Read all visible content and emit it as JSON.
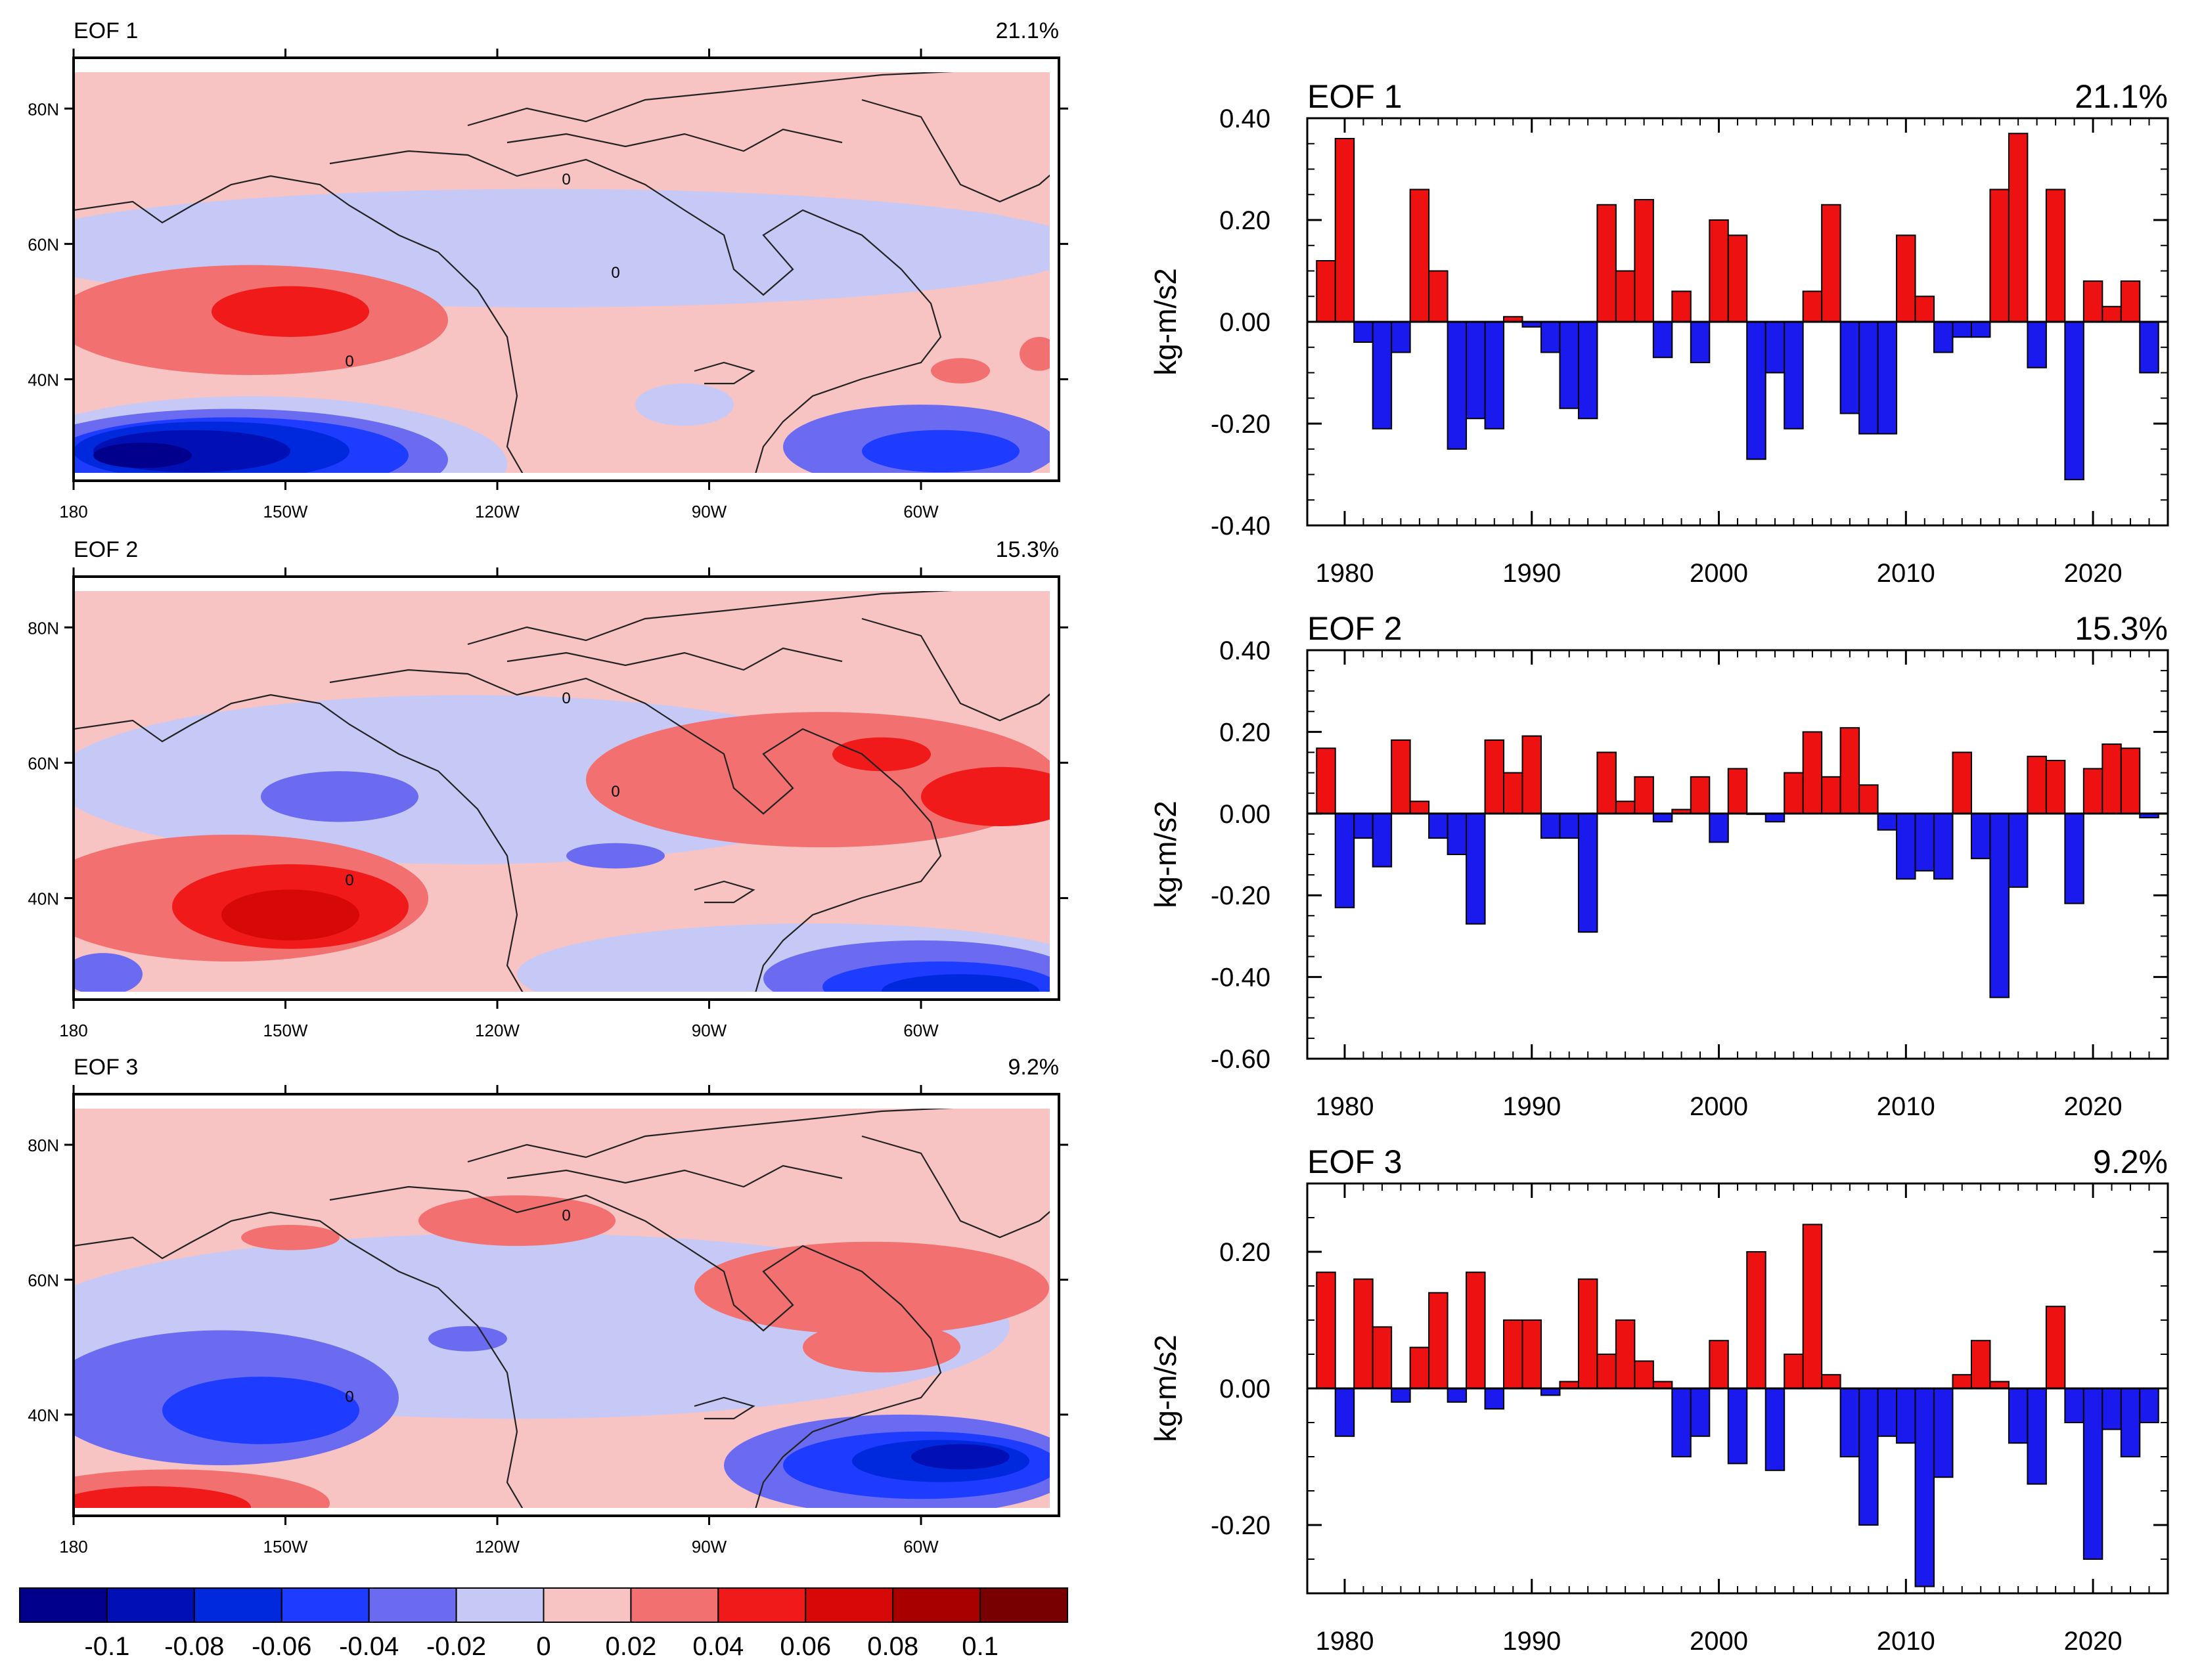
{
  "colors": {
    "positive_bar": "#ee1111",
    "negative_bar": "#1a1aee",
    "coast": "#222222",
    "colorbar": [
      "#00008c",
      "#0010b4",
      "#0028dc",
      "#1e3cff",
      "#6b6bf2",
      "#c6c9f6",
      "#f8c3c3",
      "#f27070",
      "#f01a1a",
      "#d60808",
      "#a80000",
      "#780000"
    ]
  },
  "maps": [
    {
      "label": "EOF 1",
      "variance": "21.1%",
      "lat_ticks": [
        "80N",
        "60N",
        "40N"
      ],
      "lon_ticks": [
        "180",
        "150W",
        "120W",
        "90W",
        "60W"
      ],
      "contour_labels": [
        "0",
        "0",
        "0"
      ]
    },
    {
      "label": "EOF 2",
      "variance": "15.3%",
      "lat_ticks": [
        "80N",
        "60N",
        "40N"
      ],
      "lon_ticks": [
        "180",
        "150W",
        "120W",
        "90W",
        "60W"
      ],
      "contour_labels": [
        "0",
        "0",
        "0"
      ]
    },
    {
      "label": "EOF 3",
      "variance": "9.2%",
      "lat_ticks": [
        "80N",
        "60N",
        "40N"
      ],
      "lon_ticks": [
        "180",
        "150W",
        "120W",
        "90W",
        "60W"
      ],
      "contour_labels": [
        "0",
        "0"
      ]
    }
  ],
  "colorbar": {
    "labels": [
      "-0.1",
      "-0.08",
      "-0.06",
      "-0.04",
      "-0.02",
      "0",
      "0.02",
      "0.04",
      "0.06",
      "0.08",
      "0.1"
    ]
  },
  "chart_data": [
    {
      "type": "bar",
      "title": "EOF 1",
      "subtitle": "21.1%",
      "ylabel": "kg-m/s2",
      "xlabel": "",
      "xlim": [
        1978,
        2024
      ],
      "ylim": [
        -0.4,
        0.4
      ],
      "yticks": [
        "0.40",
        "0.20",
        "0.00",
        "-0.20",
        "-0.40"
      ],
      "xticks": [
        "1980",
        "1990",
        "2000",
        "2010",
        "2020"
      ],
      "x": [
        1979,
        1980,
        1981,
        1982,
        1983,
        1984,
        1985,
        1986,
        1987,
        1988,
        1989,
        1990,
        1991,
        1992,
        1993,
        1994,
        1995,
        1996,
        1997,
        1998,
        1999,
        2000,
        2001,
        2002,
        2003,
        2004,
        2005,
        2006,
        2007,
        2008,
        2009,
        2010,
        2011,
        2012,
        2013,
        2014,
        2015,
        2016,
        2017,
        2018,
        2019,
        2020,
        2021,
        2022,
        2023
      ],
      "values": [
        0.12,
        0.36,
        -0.04,
        -0.21,
        -0.06,
        0.26,
        0.1,
        -0.25,
        -0.19,
        -0.21,
        0.01,
        -0.01,
        -0.06,
        -0.17,
        -0.19,
        0.23,
        0.1,
        0.24,
        -0.07,
        0.06,
        -0.08,
        0.2,
        0.17,
        -0.27,
        -0.1,
        -0.21,
        0.06,
        0.23,
        -0.18,
        -0.22,
        -0.22,
        0.17,
        0.05,
        -0.06,
        -0.03,
        -0.03,
        0.26,
        0.37,
        -0.09,
        0.26,
        -0.31,
        0.08,
        0.03,
        0.08,
        -0.1
      ]
    },
    {
      "type": "bar",
      "title": "EOF 2",
      "subtitle": "15.3%",
      "ylabel": "kg-m/s2",
      "xlabel": "",
      "xlim": [
        1978,
        2024
      ],
      "ylim": [
        -0.6,
        0.4
      ],
      "yticks": [
        "0.40",
        "0.20",
        "0.00",
        "-0.20",
        "-0.40",
        "-0.60"
      ],
      "xticks": [
        "1980",
        "1990",
        "2000",
        "2010",
        "2020"
      ],
      "x": [
        1979,
        1980,
        1981,
        1982,
        1983,
        1984,
        1985,
        1986,
        1987,
        1988,
        1989,
        1990,
        1991,
        1992,
        1993,
        1994,
        1995,
        1996,
        1997,
        1998,
        1999,
        2000,
        2001,
        2002,
        2003,
        2004,
        2005,
        2006,
        2007,
        2008,
        2009,
        2010,
        2011,
        2012,
        2013,
        2014,
        2015,
        2016,
        2017,
        2018,
        2019,
        2020,
        2021,
        2022,
        2023
      ],
      "values": [
        0.16,
        -0.23,
        -0.06,
        -0.13,
        0.18,
        0.03,
        -0.06,
        -0.1,
        -0.27,
        0.18,
        0.1,
        0.19,
        -0.06,
        -0.06,
        -0.29,
        0.15,
        0.03,
        0.09,
        -0.02,
        0.01,
        0.09,
        -0.07,
        0.11,
        0.0,
        -0.02,
        0.1,
        0.2,
        0.09,
        0.21,
        0.07,
        -0.04,
        -0.16,
        -0.14,
        -0.16,
        0.15,
        -0.11,
        -0.45,
        -0.18,
        0.14,
        0.13,
        -0.22,
        0.11,
        0.17,
        0.16,
        -0.01
      ]
    },
    {
      "type": "bar",
      "title": "EOF 3",
      "subtitle": "9.2%",
      "ylabel": "kg-m/s2",
      "xlabel": "",
      "xlim": [
        1978,
        2024
      ],
      "ylim": [
        -0.3,
        0.3
      ],
      "yticks": [
        "0.20",
        "0.00",
        "-0.20"
      ],
      "xticks": [
        "1980",
        "1990",
        "2000",
        "2010",
        "2020"
      ],
      "x": [
        1979,
        1980,
        1981,
        1982,
        1983,
        1984,
        1985,
        1986,
        1987,
        1988,
        1989,
        1990,
        1991,
        1992,
        1993,
        1994,
        1995,
        1996,
        1997,
        1998,
        1999,
        2000,
        2001,
        2002,
        2003,
        2004,
        2005,
        2006,
        2007,
        2008,
        2009,
        2010,
        2011,
        2012,
        2013,
        2014,
        2015,
        2016,
        2017,
        2018,
        2019,
        2020,
        2021,
        2022,
        2023
      ],
      "values": [
        0.17,
        -0.07,
        0.16,
        0.09,
        -0.02,
        0.06,
        0.14,
        -0.02,
        0.17,
        -0.03,
        0.1,
        0.1,
        -0.01,
        0.01,
        0.16,
        0.05,
        0.1,
        0.04,
        0.01,
        -0.1,
        -0.07,
        0.07,
        -0.11,
        0.2,
        -0.12,
        0.05,
        0.24,
        0.02,
        -0.1,
        -0.2,
        -0.07,
        -0.08,
        -0.29,
        -0.13,
        0.02,
        0.07,
        0.01,
        -0.08,
        -0.14,
        0.12,
        -0.05,
        -0.25,
        -0.06,
        -0.1,
        -0.05
      ]
    }
  ]
}
